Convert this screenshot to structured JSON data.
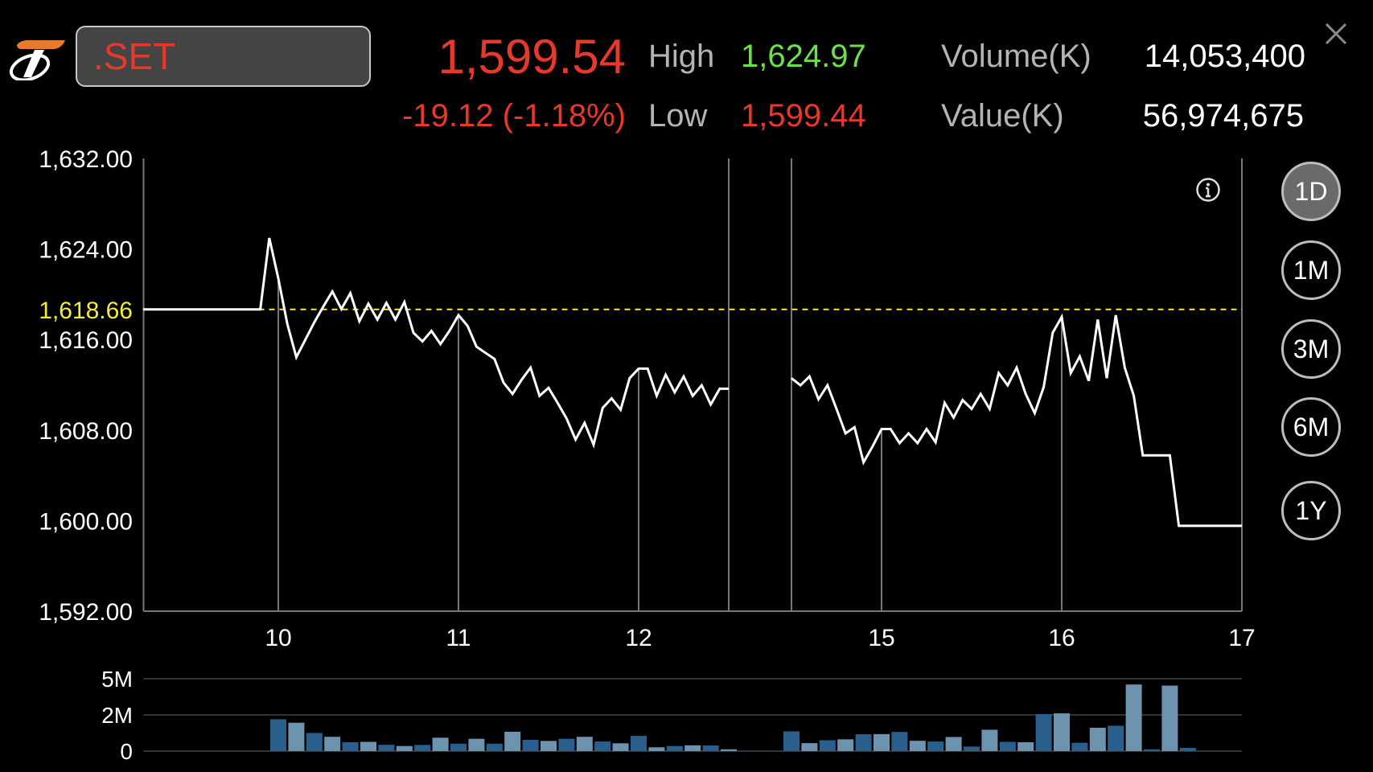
{
  "header": {
    "symbol": ".SET",
    "last_price": "1,599.54",
    "change": "-19.12 (-1.18%)",
    "high_label": "High",
    "high_value": "1,624.97",
    "low_label": "Low",
    "low_value": "1,599.44",
    "volume_label": "Volume(K)",
    "volume_value": "14,053,400",
    "value_label": "Value(K)",
    "value_value": "56,974,675",
    "close_icon": "close-icon",
    "info_icon": "info-icon"
  },
  "colors": {
    "down": "#e8372b",
    "up": "#6be24a",
    "prior_close_line": "#f2ec3c",
    "price_line": "#ffffff",
    "volume_bar_dark": "#2b5f8b",
    "volume_bar_light": "#6e93ae",
    "active_timeframe": "#6a6a6a"
  },
  "timeframes": [
    {
      "label": "1D",
      "active": true
    },
    {
      "label": "1M",
      "active": false
    },
    {
      "label": "3M",
      "active": false
    },
    {
      "label": "6M",
      "active": false
    },
    {
      "label": "1Y",
      "active": false
    }
  ],
  "chart_data": [
    {
      "type": "line",
      "title": "",
      "ylim": [
        1592,
        1632
      ],
      "y_ticks": [
        "1,632.00",
        "1,624.00",
        "1,616.00",
        "1,608.00",
        "1,600.00",
        "1,592.00"
      ],
      "y_tick_values": [
        1632,
        1624,
        1616,
        1608,
        1600,
        1592
      ],
      "x_ticks": [
        "10",
        "11",
        "12",
        "15",
        "16",
        "17"
      ],
      "x_tick_times": [
        "10:00",
        "11:00",
        "12:00",
        "15:00",
        "16:00",
        "17:00"
      ],
      "x_range": [
        "09:15",
        "17:00"
      ],
      "break": [
        "12:30",
        "14:30"
      ],
      "prior_close": {
        "label": "1,618.66",
        "value": 1618.66
      },
      "sessions": [
        [
          [
            "09:15",
            1618.66
          ],
          [
            "09:54",
            1618.66
          ],
          [
            "09:57",
            1624.97
          ],
          [
            "10:00",
            1621.4
          ],
          [
            "10:03",
            1617.38
          ],
          [
            "10:06",
            1614.44
          ],
          [
            "10:09",
            1615.98
          ],
          [
            "10:12",
            1617.53
          ],
          [
            "10:15",
            1618.92
          ],
          [
            "10:18",
            1620.24
          ],
          [
            "10:21",
            1618.69
          ],
          [
            "10:24",
            1620.09
          ],
          [
            "10:27",
            1617.61
          ],
          [
            "10:30",
            1619.16
          ],
          [
            "10:33",
            1617.76
          ],
          [
            "10:36",
            1619.23
          ],
          [
            "10:39",
            1617.76
          ],
          [
            "10:42",
            1619.31
          ],
          [
            "10:45",
            1616.6
          ],
          [
            "10:48",
            1615.83
          ],
          [
            "10:51",
            1616.76
          ],
          [
            "10:54",
            1615.6
          ],
          [
            "10:57",
            1616.76
          ],
          [
            "11:00",
            1618.15
          ],
          [
            "11:03",
            1617.22
          ],
          [
            "11:06",
            1615.37
          ],
          [
            "11:09",
            1614.82
          ],
          [
            "11:12",
            1614.28
          ],
          [
            "11:15",
            1612.19
          ],
          [
            "11:18",
            1611.19
          ],
          [
            "11:21",
            1612.43
          ],
          [
            "11:24",
            1613.51
          ],
          [
            "11:27",
            1611.03
          ],
          [
            "11:30",
            1611.73
          ],
          [
            "11:33",
            1610.41
          ],
          [
            "11:36",
            1609.02
          ],
          [
            "11:39",
            1607.16
          ],
          [
            "11:42",
            1608.63
          ],
          [
            "11:45",
            1606.7
          ],
          [
            "11:48",
            1609.95
          ],
          [
            "11:51",
            1610.8
          ],
          [
            "11:54",
            1609.8
          ],
          [
            "11:57",
            1612.58
          ],
          [
            "12:00",
            1613.43
          ],
          [
            "12:03",
            1613.43
          ],
          [
            "12:06",
            1611.03
          ],
          [
            "12:09",
            1612.89
          ],
          [
            "12:12",
            1611.34
          ],
          [
            "12:15",
            1612.73
          ],
          [
            "12:18",
            1611.03
          ],
          [
            "12:21",
            1611.96
          ],
          [
            "12:24",
            1610.26
          ],
          [
            "12:27",
            1611.65
          ],
          [
            "12:30",
            1611.65
          ]
        ],
        [
          [
            "14:30",
            1612.58
          ],
          [
            "14:33",
            1611.96
          ],
          [
            "14:36",
            1612.73
          ],
          [
            "14:39",
            1610.72
          ],
          [
            "14:42",
            1611.96
          ],
          [
            "14:45",
            1609.87
          ],
          [
            "14:48",
            1607.71
          ],
          [
            "14:51",
            1608.25
          ],
          [
            "14:54",
            1605.15
          ],
          [
            "14:57",
            1606.55
          ],
          [
            "15:00",
            1608.09
          ],
          [
            "15:03",
            1608.09
          ],
          [
            "15:06",
            1606.85
          ],
          [
            "15:09",
            1607.71
          ],
          [
            "15:12",
            1606.85
          ],
          [
            "15:15",
            1608.09
          ],
          [
            "15:18",
            1606.93
          ],
          [
            "15:21",
            1610.41
          ],
          [
            "15:24",
            1609.1
          ],
          [
            "15:27",
            1610.65
          ],
          [
            "15:30",
            1609.87
          ],
          [
            "15:33",
            1611.19
          ],
          [
            "15:36",
            1609.87
          ],
          [
            "15:39",
            1613.04
          ],
          [
            "15:42",
            1611.96
          ],
          [
            "15:45",
            1613.51
          ],
          [
            "15:48",
            1611.19
          ],
          [
            "15:51",
            1609.49
          ],
          [
            "15:54",
            1611.81
          ],
          [
            "15:57",
            1616.6
          ],
          [
            "16:00",
            1618.0
          ],
          [
            "16:03",
            1613.04
          ],
          [
            "16:06",
            1614.51
          ],
          [
            "16:09",
            1612.35
          ],
          [
            "16:12",
            1617.76
          ],
          [
            "16:15",
            1612.58
          ],
          [
            "16:18",
            1618.15
          ],
          [
            "16:21",
            1613.51
          ],
          [
            "16:24",
            1611.03
          ],
          [
            "16:27",
            1605.77
          ],
          [
            "16:36",
            1605.77
          ],
          [
            "16:39",
            1599.54
          ],
          [
            "17:00",
            1599.54
          ]
        ]
      ]
    },
    {
      "type": "bar",
      "title": "",
      "y_ticks": [
        "5M",
        "2M",
        "0"
      ],
      "y_tick_values": [
        5,
        2,
        0
      ],
      "unit": "M",
      "bars": [
        [
          "10:00",
          1.76
        ],
        [
          "10:06",
          1.57
        ],
        [
          "10:12",
          1.0
        ],
        [
          "10:18",
          0.79
        ],
        [
          "10:24",
          0.49
        ],
        [
          "10:30",
          0.51
        ],
        [
          "10:36",
          0.35
        ],
        [
          "10:42",
          0.28
        ],
        [
          "10:48",
          0.34
        ],
        [
          "10:54",
          0.74
        ],
        [
          "11:00",
          0.41
        ],
        [
          "11:06",
          0.68
        ],
        [
          "11:12",
          0.41
        ],
        [
          "11:18",
          1.07
        ],
        [
          "11:24",
          0.62
        ],
        [
          "11:30",
          0.56
        ],
        [
          "11:36",
          0.68
        ],
        [
          "11:42",
          0.79
        ],
        [
          "11:48",
          0.53
        ],
        [
          "11:54",
          0.43
        ],
        [
          "12:00",
          0.84
        ],
        [
          "12:06",
          0.21
        ],
        [
          "12:12",
          0.28
        ],
        [
          "12:18",
          0.32
        ],
        [
          "12:24",
          0.31
        ],
        [
          "12:30",
          0.1
        ],
        [
          "14:30",
          1.09
        ],
        [
          "14:36",
          0.44
        ],
        [
          "14:42",
          0.6
        ],
        [
          "14:48",
          0.65
        ],
        [
          "14:54",
          0.93
        ],
        [
          "15:00",
          0.94
        ],
        [
          "15:06",
          1.06
        ],
        [
          "15:12",
          0.57
        ],
        [
          "15:18",
          0.53
        ],
        [
          "15:24",
          0.78
        ],
        [
          "15:30",
          0.25
        ],
        [
          "15:36",
          1.18
        ],
        [
          "15:42",
          0.51
        ],
        [
          "15:48",
          0.49
        ],
        [
          "15:54",
          2.07
        ],
        [
          "16:00",
          2.13
        ],
        [
          "16:06",
          0.46
        ],
        [
          "16:12",
          1.29
        ],
        [
          "16:18",
          1.4
        ],
        [
          "16:24",
          4.52
        ],
        [
          "16:30",
          0.1
        ],
        [
          "16:36",
          4.43
        ],
        [
          "16:42",
          0.18
        ]
      ]
    }
  ]
}
